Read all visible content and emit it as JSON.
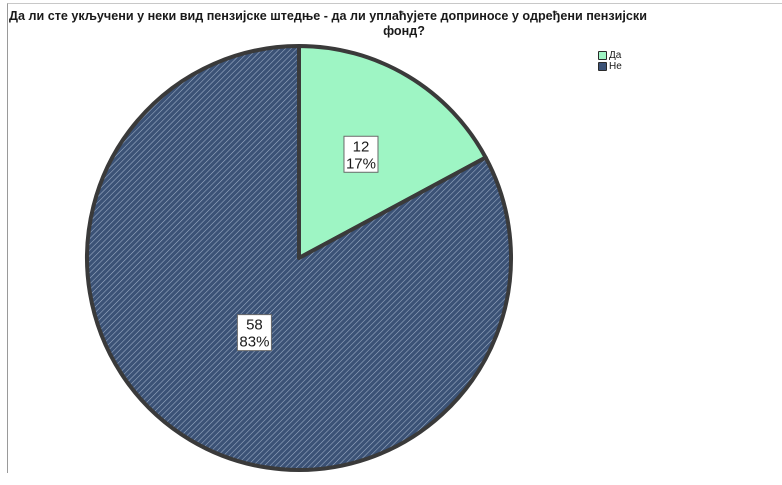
{
  "chart_data": {
    "type": "pie",
    "title_line1": "Да ли сте укључени у неки вид пензијске штедње - да ли уплаћујете доприносе у одређени пензијски",
    "title_line2": "фонд?",
    "slices": [
      {
        "name": "Да",
        "value": 12,
        "percent": "17%",
        "color": "#9ef5c4",
        "pattern": "solid"
      },
      {
        "name": "Не",
        "value": 58,
        "percent": "83%",
        "color": "#3b5276",
        "pattern": "diagonal-hatch"
      }
    ],
    "legend_position": "top-right"
  }
}
